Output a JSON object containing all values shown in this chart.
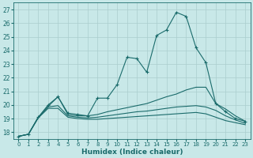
{
  "xlabel": "Humidex (Indice chaleur)",
  "ylabel": "",
  "xlim": [
    -0.5,
    23.5
  ],
  "ylim": [
    17.5,
    27.5
  ],
  "xticks": [
    0,
    1,
    2,
    3,
    4,
    5,
    6,
    7,
    8,
    9,
    10,
    11,
    12,
    13,
    14,
    15,
    16,
    17,
    18,
    19,
    20,
    21,
    22,
    23
  ],
  "yticks": [
    18,
    19,
    20,
    21,
    22,
    23,
    24,
    25,
    26,
    27
  ],
  "background_color": "#c8e8e8",
  "grid_color": "#aacece",
  "line_color": "#1a6b6b",
  "lines": [
    {
      "x": [
        0,
        1,
        2,
        3,
        4,
        5,
        6,
        7,
        8,
        9,
        10,
        11,
        12,
        13,
        14,
        15,
        16,
        17,
        18,
        19,
        20,
        21,
        22,
        23
      ],
      "y": [
        17.7,
        17.85,
        19.1,
        20.0,
        20.6,
        19.4,
        19.3,
        19.2,
        20.5,
        20.5,
        21.5,
        23.5,
        23.4,
        22.4,
        25.1,
        25.5,
        26.8,
        26.5,
        24.2,
        23.1,
        20.1,
        19.5,
        19.0,
        18.8
      ],
      "marker": "+"
    },
    {
      "x": [
        0,
        1,
        2,
        3,
        4,
        5,
        6,
        7,
        8,
        9,
        10,
        11,
        12,
        13,
        14,
        15,
        16,
        17,
        18,
        19,
        20,
        21,
        22,
        23
      ],
      "y": [
        17.7,
        17.85,
        19.1,
        19.9,
        20.6,
        19.3,
        19.2,
        19.2,
        19.3,
        19.5,
        19.65,
        19.8,
        19.95,
        20.1,
        20.35,
        20.6,
        20.8,
        21.1,
        21.3,
        21.3,
        20.1,
        19.7,
        19.2,
        18.8
      ],
      "marker": null
    },
    {
      "x": [
        0,
        1,
        2,
        3,
        4,
        5,
        6,
        7,
        8,
        9,
        10,
        11,
        12,
        13,
        14,
        15,
        16,
        17,
        18,
        19,
        20,
        21,
        22,
        23
      ],
      "y": [
        17.7,
        17.85,
        19.1,
        19.85,
        19.95,
        19.2,
        19.1,
        19.05,
        19.1,
        19.2,
        19.3,
        19.4,
        19.5,
        19.55,
        19.65,
        19.75,
        19.85,
        19.9,
        19.95,
        19.85,
        19.6,
        19.2,
        18.9,
        18.65
      ],
      "marker": null
    },
    {
      "x": [
        0,
        1,
        2,
        3,
        4,
        5,
        6,
        7,
        8,
        9,
        10,
        11,
        12,
        13,
        14,
        15,
        16,
        17,
        18,
        19,
        20,
        21,
        22,
        23
      ],
      "y": [
        17.7,
        17.85,
        19.05,
        19.75,
        19.75,
        19.1,
        19.0,
        18.95,
        18.95,
        19.0,
        19.05,
        19.1,
        19.15,
        19.2,
        19.25,
        19.3,
        19.35,
        19.4,
        19.45,
        19.35,
        19.1,
        18.85,
        18.7,
        18.55
      ],
      "marker": null
    }
  ]
}
